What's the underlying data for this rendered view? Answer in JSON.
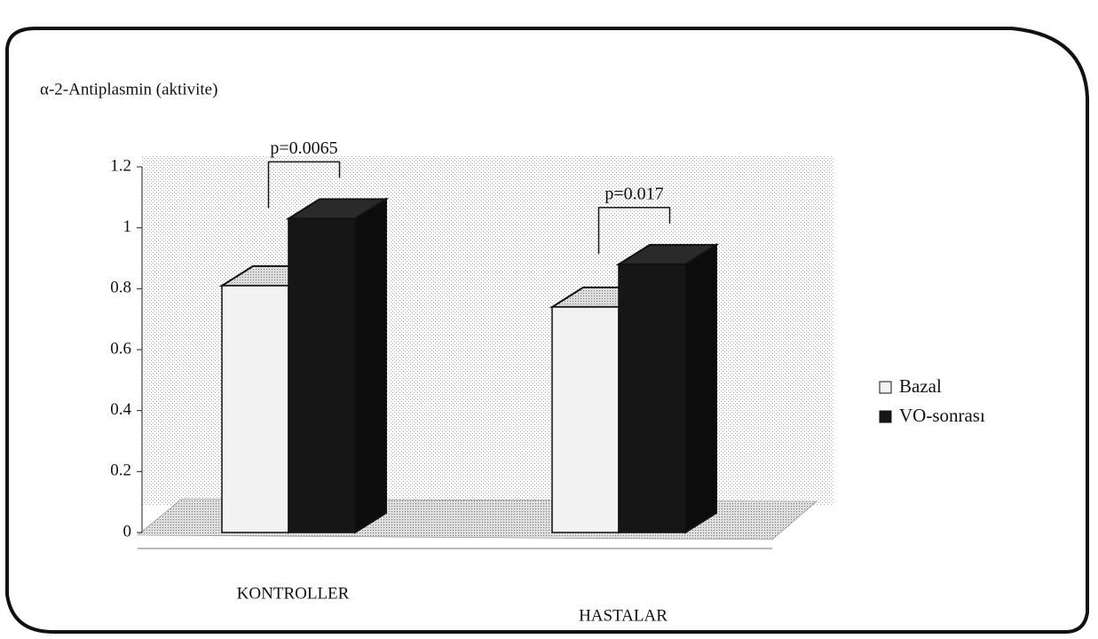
{
  "chart_data": {
    "type": "bar3d",
    "title": "α-2-Antiplasmin (aktivite)",
    "categories": [
      "KONTROLLER",
      "HASTALAR"
    ],
    "series": [
      {
        "name": "Bazal",
        "color": "#f2f2f2",
        "values": [
          0.81,
          0.74
        ]
      },
      {
        "name": "VO-sonrası",
        "color": "#161616",
        "values": [
          1.03,
          0.88
        ]
      }
    ],
    "annotations": [
      "p=0.0065",
      "p=0.017"
    ],
    "ylim": [
      0,
      1.2
    ],
    "yticks": [
      0,
      0.2,
      0.4,
      0.6,
      0.8,
      1,
      1.2
    ],
    "legend": "right"
  }
}
